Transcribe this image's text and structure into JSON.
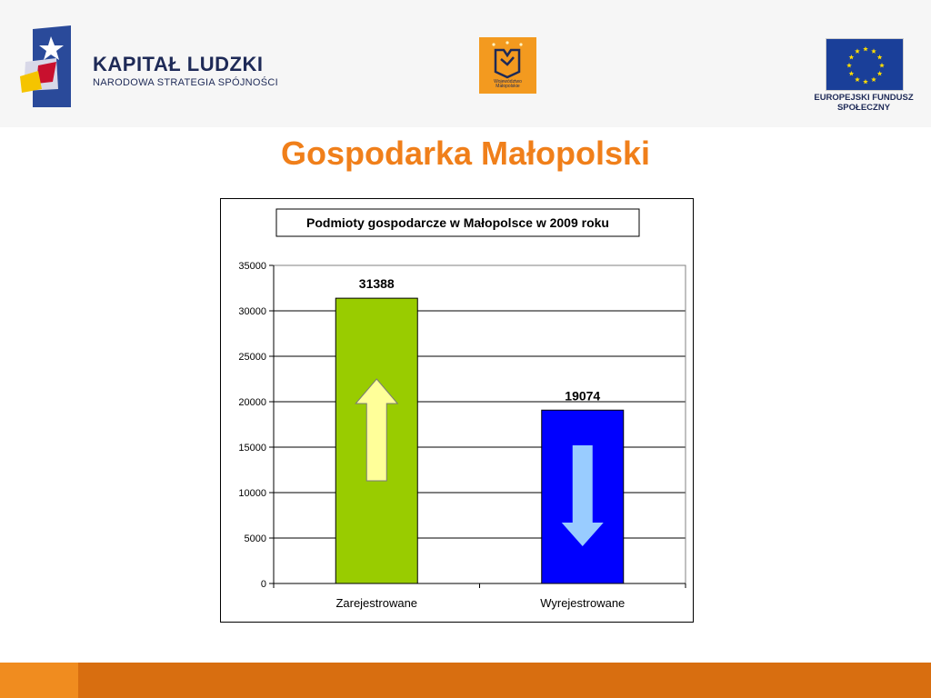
{
  "header": {
    "kapital_ludzki": {
      "title": "KAPITAŁ LUDZKI",
      "subtitle": "NARODOWA STRATEGIA SPÓJNOŚCI"
    },
    "malopolska": {
      "caption_line1": "Województwo",
      "caption_line2": "Małopolskie"
    },
    "eu": {
      "caption_line1": "EUROPEJSKI FUNDUSZ",
      "caption_line2": "SPOŁECZNY"
    }
  },
  "slide": {
    "title": "Gospodarka Małopolski"
  },
  "colors": {
    "title_orange": "#f07f1a",
    "bar_registered": "#99cc00",
    "bar_deregistered": "#0000ff",
    "arrow_up": "#ffff99",
    "arrow_down": "#99ccff",
    "footer_light": "#f08c1f",
    "footer_dark": "#d86e10"
  },
  "chart_data": {
    "type": "bar",
    "title": "Podmioty gospodarcze w Małopolsce w 2009 roku",
    "categories": [
      "Zarejestrowane",
      "Wyrejestrowane"
    ],
    "values": [
      31388,
      19074
    ],
    "data_labels": [
      "31388",
      "19074"
    ],
    "ylim": [
      0,
      35000
    ],
    "yticks": [
      0,
      5000,
      10000,
      15000,
      20000,
      25000,
      30000,
      35000
    ],
    "grid": true,
    "legend": "none",
    "annotations": [
      {
        "category": "Zarejestrowane",
        "icon": "arrow-up-icon"
      },
      {
        "category": "Wyrejestrowane",
        "icon": "arrow-down-icon"
      }
    ]
  }
}
